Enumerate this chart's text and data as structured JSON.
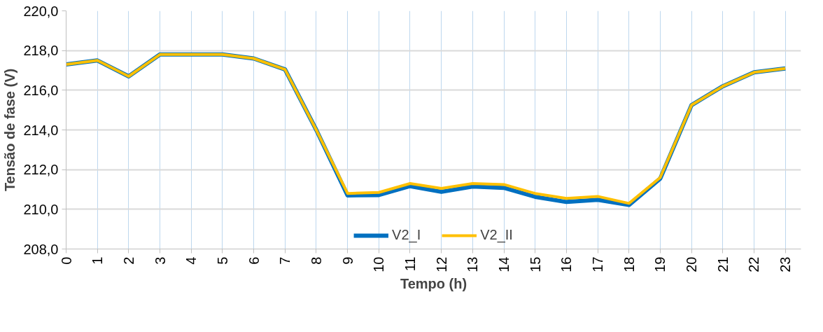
{
  "chart_data": {
    "type": "line",
    "xlabel": "Tempo (h)",
    "ylabel": "Tensão de fase (V)",
    "categories": [
      "0",
      "1",
      "2",
      "3",
      "4",
      "5",
      "6",
      "7",
      "8",
      "9",
      "10",
      "11",
      "12",
      "13",
      "14",
      "15",
      "16",
      "17",
      "18",
      "19",
      "20",
      "21",
      "22",
      "23"
    ],
    "series": [
      {
        "name": "V2_I",
        "color": "#0070c0",
        "values": [
          217.3,
          217.5,
          216.7,
          217.8,
          217.8,
          217.8,
          217.6,
          217.05,
          214.0,
          210.7,
          210.72,
          211.17,
          210.88,
          211.15,
          211.08,
          210.63,
          210.37,
          210.48,
          210.22,
          211.55,
          215.25,
          216.2,
          216.9,
          217.1
        ]
      },
      {
        "name": "V2_II",
        "color": "#ffc000",
        "values": [
          217.3,
          217.5,
          216.7,
          217.8,
          217.8,
          217.8,
          217.6,
          217.05,
          214.0,
          210.8,
          210.85,
          211.3,
          211.05,
          211.3,
          211.25,
          210.8,
          210.55,
          210.65,
          210.3,
          211.6,
          215.25,
          216.2,
          216.9,
          217.1
        ]
      }
    ],
    "ylim": [
      208,
      220
    ],
    "yticks": [
      {
        "value": 208,
        "label": "208,0"
      },
      {
        "value": 210,
        "label": "210,0"
      },
      {
        "value": 212,
        "label": "212,0"
      },
      {
        "value": 214,
        "label": "214,0"
      },
      {
        "value": 216,
        "label": "216,0"
      },
      {
        "value": 218,
        "label": "218,0"
      },
      {
        "value": 220,
        "label": "220,0"
      }
    ],
    "grid": true,
    "legend": "bottom",
    "marker": "none",
    "line_style": "solid"
  }
}
